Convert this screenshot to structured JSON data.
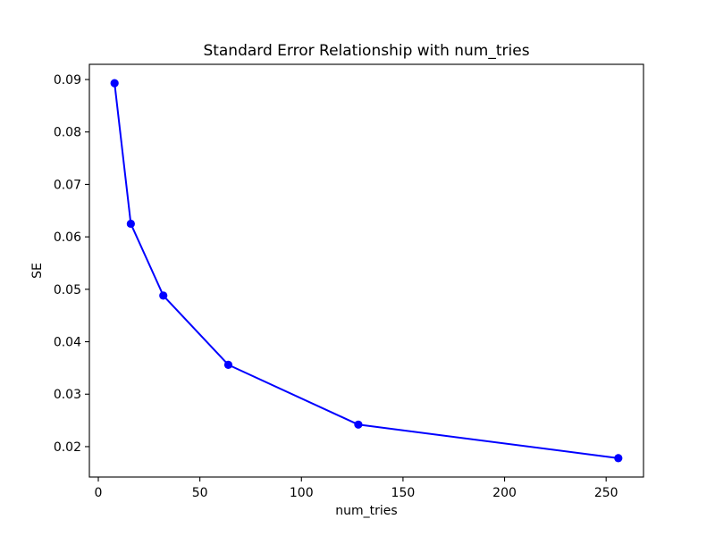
{
  "figure": {
    "background": "#ffffff",
    "text_color": "#000000",
    "spine_color": "#000000"
  },
  "chart_data": {
    "type": "line",
    "title": "Standard Error Relationship with num_tries",
    "xlabel": "num_tries",
    "ylabel": "SE",
    "grid": false,
    "legend": null,
    "xlim": [
      -4.4,
      268.4
    ],
    "ylim": [
      0.0142,
      0.0929
    ],
    "xticks": [
      0,
      50,
      100,
      150,
      200,
      250
    ],
    "xtick_labels": [
      "0",
      "50",
      "100",
      "150",
      "200",
      "250"
    ],
    "yticks": [
      0.02,
      0.03,
      0.04,
      0.05,
      0.06,
      0.07,
      0.08,
      0.09
    ],
    "ytick_labels": [
      "0.02",
      "0.03",
      "0.04",
      "0.05",
      "0.06",
      "0.07",
      "0.08",
      "0.09"
    ],
    "series": [
      {
        "name": "SE",
        "color": "#0000ff",
        "marker": "circle",
        "x": [
          8,
          16,
          32,
          64,
          128,
          256
        ],
        "y": [
          0.0893,
          0.0625,
          0.0488,
          0.0356,
          0.0242,
          0.0178
        ]
      }
    ]
  }
}
